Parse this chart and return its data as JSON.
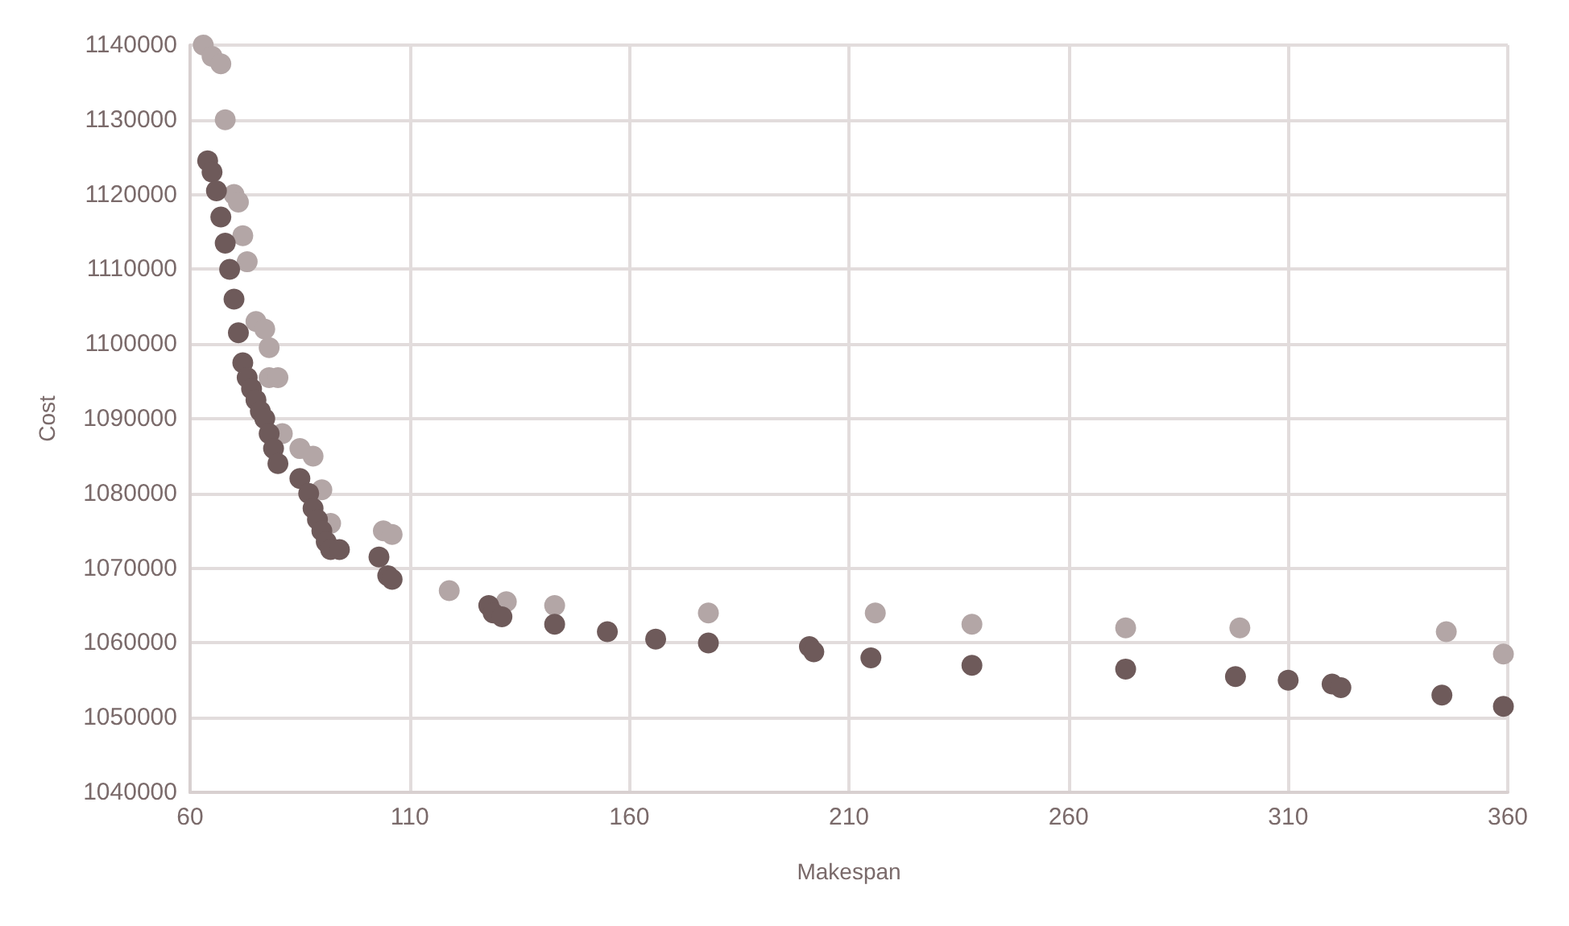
{
  "chart_data": {
    "type": "scatter",
    "xlabel": "Makespan",
    "ylabel": "Cost",
    "xlim": [
      60,
      360
    ],
    "xticks": [
      60,
      110,
      160,
      210,
      260,
      310,
      360
    ],
    "ylim": [
      1040000,
      1140000
    ],
    "yticks": [
      1040000,
      1050000,
      1060000,
      1070000,
      1080000,
      1090000,
      1100000,
      1110000,
      1120000,
      1130000,
      1140000
    ],
    "grid": true,
    "marker": "circle",
    "series": [
      {
        "color": "#b3a6a6",
        "x": [
          63,
          65,
          67,
          68,
          70,
          71,
          72,
          73,
          75,
          77,
          78,
          78,
          80,
          81,
          85,
          88,
          90,
          92,
          104,
          106,
          119,
          132,
          143,
          178,
          216,
          238,
          273,
          299,
          346,
          359
        ],
        "values": [
          1140000,
          1138500,
          1137500,
          1130000,
          1120000,
          1119000,
          1114500,
          1111000,
          1103000,
          1102000,
          1099500,
          1095500,
          1095500,
          1088000,
          1086000,
          1085000,
          1080500,
          1076000,
          1075000,
          1074500,
          1067000,
          1065500,
          1065000,
          1064000,
          1064000,
          1062500,
          1062000,
          1062000,
          1061500,
          1058500
        ]
      },
      {
        "color": "#6e5a5a",
        "x": [
          64,
          65,
          66,
          67,
          68,
          69,
          70,
          71,
          72,
          73,
          74,
          75,
          76,
          77,
          78,
          79,
          80,
          85,
          87,
          88,
          89,
          90,
          91,
          92,
          94,
          103,
          105,
          106,
          128,
          129,
          131,
          143,
          155,
          166,
          178,
          201,
          202,
          215,
          238,
          273,
          298,
          310,
          320,
          322,
          345,
          359
        ],
        "values": [
          1124500,
          1123000,
          1120500,
          1117000,
          1113500,
          1110000,
          1106000,
          1101500,
          1097500,
          1095500,
          1094000,
          1092500,
          1091000,
          1090000,
          1088000,
          1086000,
          1084000,
          1082000,
          1080000,
          1078000,
          1076500,
          1075000,
          1073500,
          1072500,
          1072500,
          1071500,
          1069000,
          1068500,
          1065000,
          1064000,
          1063500,
          1062500,
          1061500,
          1060500,
          1060000,
          1059500,
          1058800,
          1058000,
          1057000,
          1056500,
          1055500,
          1055000,
          1054500,
          1054000,
          1053000,
          1051500
        ]
      }
    ]
  }
}
